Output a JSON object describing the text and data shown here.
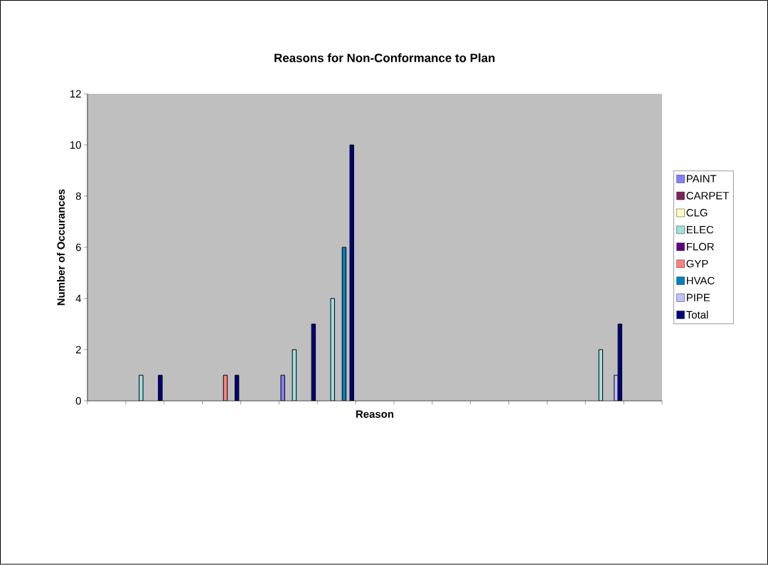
{
  "chart_data": {
    "type": "bar",
    "title": "Reasons for Non-Conformance to Plan",
    "xlabel": "Reason",
    "ylabel": "Number of Occurances",
    "categories": [
      null,
      null,
      null,
      null,
      null,
      null,
      null,
      null,
      null,
      null,
      null,
      null,
      null,
      null,
      null
    ],
    "series": [
      {
        "name": "PAINT",
        "color": "#8080ff",
        "values": [
          null,
          null,
          null,
          null,
          null,
          1,
          null,
          null,
          null,
          null,
          null,
          null,
          null,
          null,
          null
        ]
      },
      {
        "name": "CARPET",
        "color": "#802060",
        "values": [
          null,
          null,
          null,
          null,
          null,
          null,
          null,
          null,
          null,
          null,
          null,
          null,
          null,
          null,
          null
        ]
      },
      {
        "name": "CLG",
        "color": "#ffffc0",
        "values": [
          null,
          null,
          null,
          null,
          null,
          null,
          null,
          null,
          null,
          null,
          null,
          null,
          null,
          null,
          null
        ]
      },
      {
        "name": "ELEC",
        "color": "#a0e0e0",
        "values": [
          null,
          1,
          null,
          null,
          null,
          2,
          4,
          null,
          null,
          null,
          null,
          null,
          null,
          2,
          null
        ]
      },
      {
        "name": "FLOR",
        "color": "#600080",
        "values": [
          null,
          null,
          null,
          null,
          null,
          null,
          null,
          null,
          null,
          null,
          null,
          null,
          null,
          null,
          null
        ]
      },
      {
        "name": "GYP",
        "color": "#ff8080",
        "values": [
          null,
          null,
          null,
          1,
          null,
          null,
          null,
          null,
          null,
          null,
          null,
          null,
          null,
          null,
          null
        ]
      },
      {
        "name": "HVAC",
        "color": "#0080c0",
        "values": [
          null,
          null,
          null,
          null,
          null,
          null,
          6,
          null,
          null,
          null,
          null,
          null,
          null,
          null,
          null
        ]
      },
      {
        "name": "PIPE",
        "color": "#c0c0ff",
        "values": [
          null,
          null,
          null,
          null,
          null,
          null,
          null,
          null,
          null,
          null,
          null,
          null,
          null,
          1,
          null
        ]
      },
      {
        "name": "Total",
        "color": "#000080",
        "values": [
          null,
          1,
          null,
          1,
          null,
          3,
          10,
          null,
          null,
          null,
          null,
          null,
          null,
          3,
          null
        ]
      }
    ],
    "ylim": [
      0,
      12
    ],
    "yticks": [
      0,
      2,
      4,
      6,
      8,
      10,
      12
    ],
    "grid": false,
    "legend": "right"
  }
}
